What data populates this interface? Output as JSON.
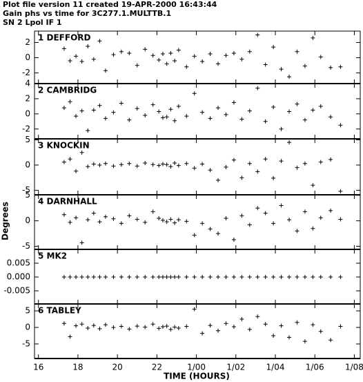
{
  "chart_data": {
    "type": "scatter",
    "title_lines": [
      "Plot file version 11  created 19-APR-2000 16:43:44",
      "Gain phs vs time for 3C277.1.MULTTB.1",
      "SN 2 Lpol IF 1"
    ],
    "xlabel": "TIME (HOURS)",
    "ylabel": "Degrees",
    "color": "#000000",
    "xlim": [
      15.8,
      32.3
    ],
    "xticks": [
      16,
      18,
      20,
      22,
      {
        "value": 24,
        "label": "1/00"
      },
      {
        "value": 26,
        "label": "1/02"
      },
      {
        "value": 28,
        "label": "1/04"
      },
      {
        "value": 30,
        "label": "1/06"
      },
      {
        "value": 32,
        "label": "1/08"
      }
    ],
    "x": [
      17.3,
      17.6,
      17.9,
      18.2,
      18.5,
      18.8,
      19.1,
      19.4,
      19.8,
      20.2,
      20.6,
      21.0,
      21.4,
      21.8,
      22.1,
      22.3,
      22.5,
      22.7,
      22.9,
      23.1,
      23.5,
      23.9,
      24.3,
      24.7,
      25.1,
      25.5,
      25.9,
      26.3,
      26.7,
      27.1,
      27.5,
      27.9,
      28.3,
      28.7,
      29.1,
      29.5,
      29.9,
      30.3,
      30.8,
      31.3
    ],
    "panels": [
      {
        "name": "1 DEFFORD",
        "ylim": [
          -3.4,
          3.5
        ],
        "yticks": [
          -2,
          0,
          2
        ],
        "values": [
          1.2,
          -0.4,
          0.2,
          -0.5,
          1.5,
          -0.2,
          2.2,
          -1.7,
          0.4,
          0.8,
          0.6,
          -1.0,
          1.1,
          0.3,
          -0.3,
          0.5,
          -0.8,
          0.6,
          -0.4,
          1.0,
          -1.2,
          0.2,
          -0.5,
          0.5,
          -0.8,
          0.3,
          0.6,
          -0.2,
          0.8,
          3.0,
          -0.9,
          1.4,
          -1.5,
          -2.5,
          0.8,
          -1.1,
          2.6,
          0.1,
          -1.3,
          -1.2
        ]
      },
      {
        "name": "2 CAMBRIDG",
        "ylim": [
          -3.3,
          4.0
        ],
        "yticks": [
          -2,
          0,
          2,
          4
        ],
        "values": [
          0.8,
          1.6,
          -0.3,
          0.4,
          -2.2,
          0.5,
          1.1,
          -0.6,
          0.2,
          1.4,
          -0.8,
          0.7,
          -0.2,
          1.2,
          0.3,
          -0.5,
          -0.4,
          0.6,
          -0.9,
          1.0,
          -0.3,
          2.7,
          0.2,
          -0.6,
          0.8,
          -0.1,
          1.5,
          -0.7,
          0.4,
          3.4,
          -1.0,
          0.9,
          -2.0,
          0.3,
          1.3,
          -0.8,
          0.5,
          1.0,
          -0.4,
          -1.5
        ]
      },
      {
        "name": "3 KNOCKIN",
        "ylim": [
          -5.9,
          5.2
        ],
        "yticks": [
          -5,
          0,
          5
        ],
        "values": [
          0.6,
          1.2,
          -1.2,
          2.5,
          -0.3,
          0.2,
          0.0,
          0.3,
          -0.2,
          0.1,
          0.3,
          -0.2,
          0.4,
          0.1,
          -0.1,
          0.2,
          0.1,
          -0.3,
          0.4,
          -0.1,
          0.3,
          -0.6,
          0.2,
          -1.0,
          -3.0,
          -0.4,
          1.0,
          -2.5,
          0.3,
          -1.3,
          1.2,
          -2.6,
          0.8,
          4.5,
          -0.5,
          0.3,
          -4.0,
          0.6,
          1.1,
          -5.2
        ]
      },
      {
        "name": "4 DARNHALL",
        "ylim": [
          -5.6,
          5.1
        ],
        "yticks": [
          -5,
          0,
          5
        ],
        "values": [
          1.2,
          -0.3,
          0.6,
          -4.3,
          0.2,
          1.5,
          -0.2,
          0.8,
          0.4,
          -0.5,
          1.0,
          0.3,
          -0.3,
          1.8,
          0.5,
          0.1,
          -0.2,
          0.3,
          -0.4,
          0.2,
          -0.1,
          -2.8,
          -0.5,
          -1.6,
          -2.5,
          0.5,
          -3.7,
          1.0,
          -0.8,
          2.5,
          1.5,
          -0.5,
          3.0,
          0.2,
          -2.0,
          1.8,
          -1.5,
          0.6,
          2.0,
          0.3
        ]
      },
      {
        "name": "5 MK2",
        "ylim": [
          -0.00975,
          0.01
        ],
        "yticks": [
          -0.005,
          {
            "value": 0,
            "label": "0.000"
          },
          0.005
        ],
        "values": [
          0,
          0,
          0,
          0,
          0,
          0,
          0,
          0,
          0,
          0,
          0,
          0,
          0,
          0,
          0,
          0,
          0,
          0,
          0,
          0,
          0,
          0,
          0,
          0,
          0,
          0,
          0,
          0,
          0,
          0,
          0,
          0,
          0,
          0,
          0,
          0,
          0,
          0,
          0,
          0
        ]
      },
      {
        "name": "6 TABLEY",
        "ylim": [
          -9.4,
          7.1
        ],
        "yticks": [
          -5,
          0,
          5
        ],
        "values": [
          1.2,
          -2.8,
          0.5,
          1.0,
          -0.2,
          0.6,
          -0.4,
          0.8,
          0.0,
          0.3,
          -0.5,
          0.4,
          0.1,
          1.0,
          -0.3,
          0.2,
          0.4,
          -0.6,
          0.1,
          -0.2,
          0.3,
          5.5,
          -1.8,
          0.6,
          -1.0,
          1.2,
          0.2,
          2.5,
          -0.6,
          3.3,
          1.0,
          -2.5,
          0.5,
          -3.0,
          1.5,
          -4.2,
          0.8,
          -1.2,
          -3.8,
          0.3
        ]
      }
    ]
  }
}
